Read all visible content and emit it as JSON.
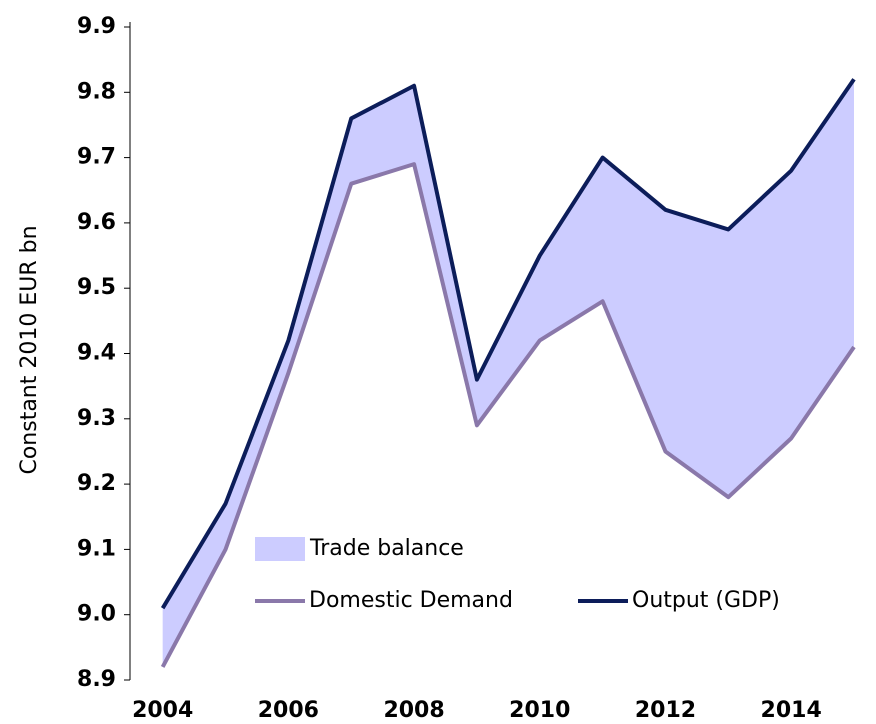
{
  "chart_data": {
    "type": "line",
    "y_label": "Constant 2010 EUR bn",
    "x": [
      2004,
      2005,
      2006,
      2007,
      2008,
      2009,
      2010,
      2011,
      2012,
      2013,
      2014,
      2015
    ],
    "series": [
      {
        "name": "Domestic Demand",
        "color": "#8a78aa",
        "values": [
          8.92,
          9.1,
          9.37,
          9.66,
          9.69,
          9.29,
          9.42,
          9.48,
          9.25,
          9.18,
          9.27,
          9.41
        ]
      },
      {
        "name": "Output (GDP)",
        "color": "#0c1d5a",
        "values": [
          9.01,
          9.17,
          9.42,
          9.76,
          9.81,
          9.36,
          9.55,
          9.7,
          9.62,
          9.59,
          9.68,
          9.82
        ]
      }
    ],
    "area": {
      "name": "Trade balance",
      "color": "#ccccff"
    },
    "xlim": [
      2003.48,
      2015
    ],
    "xticks": [
      2004,
      2006,
      2008,
      2010,
      2012,
      2014
    ],
    "ylim": [
      8.9,
      9.9
    ],
    "yticks": [
      8.9,
      {
        "value": 9,
        "label": "9.0"
      },
      9.1,
      9.2,
      9.3,
      9.4,
      9.5,
      9.6,
      9.7,
      9.8,
      9.9
    ]
  }
}
